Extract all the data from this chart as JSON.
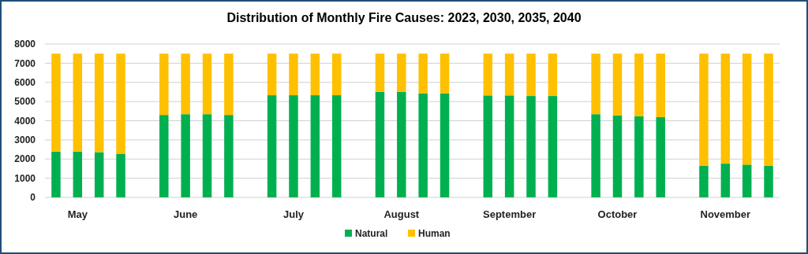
{
  "chart_data": {
    "type": "bar",
    "title": "Distribution of Monthly Fire Causes: 2023, 2030, 2035, 2040",
    "stacked": true,
    "categories": [
      null,
      "May",
      null,
      null,
      null,
      null,
      "June",
      null,
      null,
      null,
      null,
      "July",
      null,
      null,
      null,
      null,
      "August",
      null,
      null,
      null,
      null,
      "September",
      null,
      null,
      null,
      null,
      "October",
      null,
      null,
      null,
      null,
      "November",
      null,
      null
    ],
    "series": [
      {
        "name": "Natural",
        "color": "#00b050",
        "values": [
          2390,
          2390,
          2360,
          2280,
          null,
          4300,
          4340,
          4340,
          4300,
          null,
          5330,
          5330,
          5330,
          5330,
          null,
          5510,
          5510,
          5430,
          5430,
          null,
          5320,
          5320,
          5290,
          5290,
          null,
          4340,
          4280,
          4230,
          4190,
          null,
          1640,
          1760,
          1710,
          1640
        ]
      },
      {
        "name": "Human",
        "color": "#ffc000",
        "values": [
          5110,
          5110,
          5140,
          5220,
          null,
          3200,
          3160,
          3160,
          3200,
          null,
          2170,
          2170,
          2170,
          2170,
          null,
          1990,
          1990,
          2070,
          2070,
          null,
          2180,
          2180,
          2210,
          2210,
          null,
          3160,
          3220,
          3270,
          3310,
          null,
          5860,
          5740,
          5790,
          5860
        ]
      }
    ],
    "ylim": [
      0,
      8000
    ],
    "yticks": [
      0,
      1000,
      2000,
      3000,
      4000,
      5000,
      6000,
      7000,
      8000
    ],
    "grid": "y",
    "legend": "bottom"
  }
}
